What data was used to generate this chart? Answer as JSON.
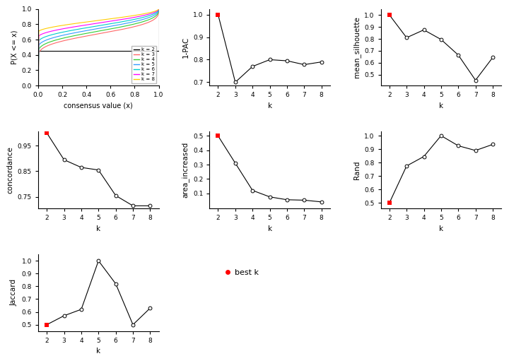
{
  "k_values": [
    2,
    3,
    4,
    5,
    6,
    7,
    8
  ],
  "pac_1minus": [
    1.0,
    0.7,
    0.77,
    0.8,
    0.795,
    0.778,
    0.79
  ],
  "mean_silhouette": [
    1.0,
    0.81,
    0.875,
    0.795,
    0.665,
    0.455,
    0.645
  ],
  "concordance": [
    1.0,
    0.895,
    0.865,
    0.855,
    0.755,
    0.715,
    0.715
  ],
  "area_increased": [
    0.5,
    0.31,
    0.12,
    0.075,
    0.055,
    0.052,
    0.04
  ],
  "rand": [
    0.5,
    0.775,
    0.845,
    1.0,
    0.925,
    0.89,
    0.935
  ],
  "jaccard": [
    0.5,
    0.57,
    0.62,
    1.0,
    0.82,
    0.5,
    0.63
  ],
  "best_k": 2,
  "ecdf_colors": [
    "black",
    "#FF6666",
    "#33CC33",
    "#3399FF",
    "#00CCCC",
    "#FF00FF",
    "#FFCC00"
  ],
  "ecdf_labels": [
    "k = 2",
    "k = 3",
    "k = 4",
    "k = 5",
    "k = 6",
    "k = 7",
    "k = 8"
  ],
  "line_color": "black",
  "best_k_color": "red",
  "bg_color": "white",
  "panel_bg": "white"
}
